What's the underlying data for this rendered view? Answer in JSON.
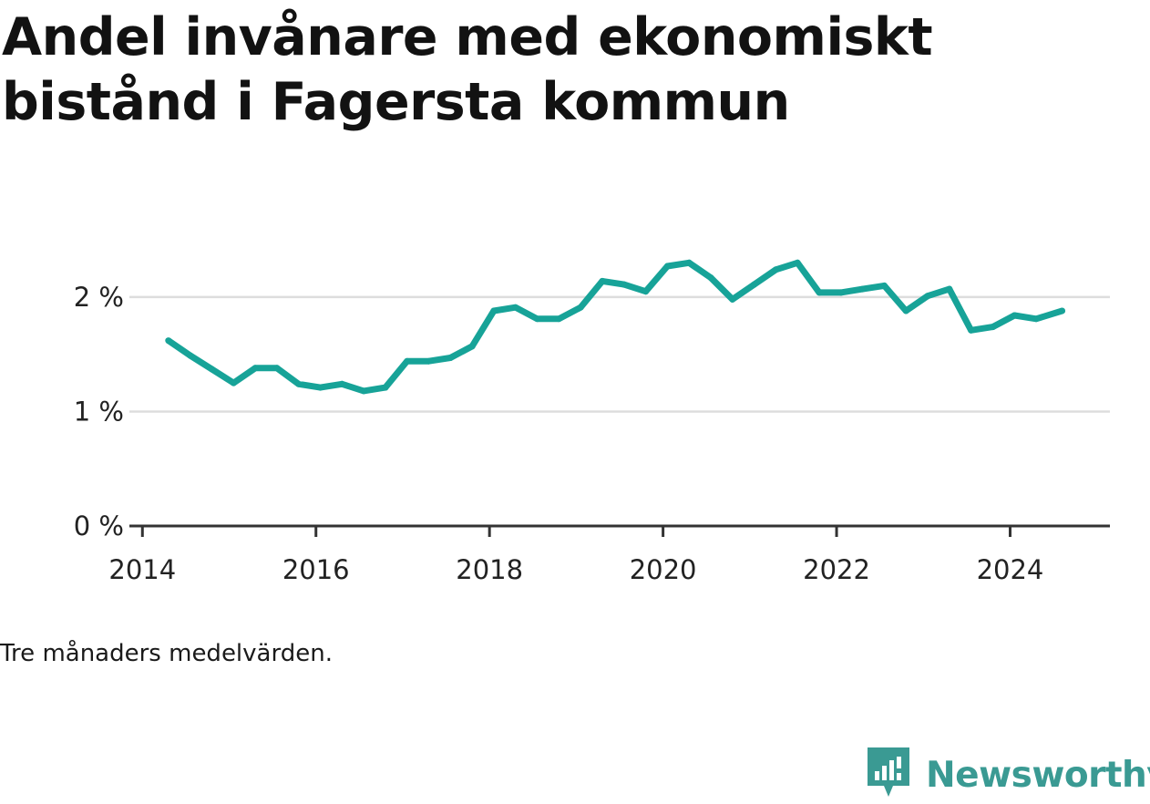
{
  "title": "Andel invånare med ekonomiskt bistånd i Fagersta kommun",
  "note": "Tre månaders medelvärden.",
  "brand": {
    "name": "Newsworthy",
    "icon": "newsworthy-logo-icon",
    "color": "#3a9a93"
  },
  "colors": {
    "line": "#17a398",
    "grid": "#dddddd",
    "axis": "#333333"
  },
  "chart_data": {
    "type": "line",
    "title": "Andel invånare med ekonomiskt bistånd i Fagersta kommun",
    "xlabel": "",
    "ylabel": "",
    "xlim": [
      2013.85,
      2025.15
    ],
    "ylim": [
      0,
      2.35
    ],
    "grid": true,
    "x_ticks": [
      {
        "value": 2014,
        "label": "2014"
      },
      {
        "value": 2016,
        "label": "2016"
      },
      {
        "value": 2018,
        "label": "2018"
      },
      {
        "value": 2020,
        "label": "2020"
      },
      {
        "value": 2022,
        "label": "2022"
      },
      {
        "value": 2024,
        "label": "2024"
      }
    ],
    "y_ticks": [
      {
        "value": 0,
        "label": "0 %"
      },
      {
        "value": 1,
        "label": "1 %"
      },
      {
        "value": 2,
        "label": "2 %"
      }
    ],
    "series": [
      {
        "x": [
          2014.3,
          2014.55,
          2014.8,
          2015.05,
          2015.3,
          2015.55,
          2015.8,
          2016.05,
          2016.3,
          2016.55,
          2016.8,
          2017.05,
          2017.3,
          2017.55,
          2017.8,
          2018.05,
          2018.3,
          2018.55,
          2018.8,
          2019.05,
          2019.3,
          2019.55,
          2019.8,
          2020.05,
          2020.3,
          2020.55,
          2020.8,
          2021.05,
          2021.3,
          2021.55,
          2021.8,
          2022.05,
          2022.3,
          2022.55,
          2022.8,
          2023.05,
          2023.3,
          2023.55,
          2023.8,
          2024.05,
          2024.3,
          2024.6
        ],
        "values": [
          1.62,
          1.49,
          1.37,
          1.25,
          1.38,
          1.38,
          1.24,
          1.21,
          1.24,
          1.18,
          1.21,
          1.44,
          1.44,
          1.47,
          1.57,
          1.88,
          1.91,
          1.81,
          1.81,
          1.91,
          2.14,
          2.11,
          2.05,
          2.27,
          2.3,
          2.17,
          1.98,
          2.11,
          2.24,
          2.3,
          2.04,
          2.04,
          2.07,
          2.1,
          1.88,
          2.01,
          2.07,
          1.71,
          1.74,
          1.84,
          1.81,
          1.88
        ]
      }
    ]
  }
}
